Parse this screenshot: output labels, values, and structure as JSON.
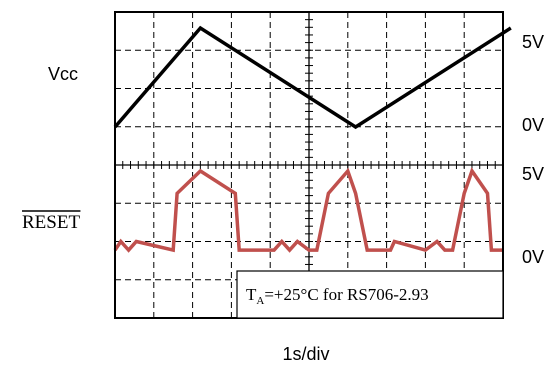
{
  "chart_data": {
    "type": "line",
    "xlabel": "1s/div",
    "series": [
      {
        "name": "Vcc",
        "color": "#000000",
        "x": [
          0,
          2.2,
          6.2,
          10.2
        ],
        "y": [
          0,
          5,
          0,
          5
        ]
      },
      {
        "name": "RESET",
        "color": "#c0504d",
        "x": [
          0,
          0.15,
          0.35,
          0.55,
          1.5,
          1.6,
          2.2,
          3.1,
          3.2,
          4.1,
          4.3,
          4.5,
          4.7,
          5.0,
          5.2,
          5.5,
          6.0,
          6.2,
          6.5,
          7.1,
          7.2,
          8.0,
          8.3,
          8.5,
          8.7,
          9.0,
          9.2,
          9.6,
          9.7,
          10.0
        ],
        "y": [
          0.4,
          0.9,
          0.4,
          0.9,
          0.4,
          3.7,
          5.0,
          3.7,
          0.4,
          0.4,
          0.9,
          0.4,
          0.9,
          0.4,
          0.4,
          3.7,
          5.0,
          3.7,
          0.4,
          0.4,
          0.9,
          0.4,
          0.9,
          0.4,
          0.4,
          3.7,
          5.0,
          3.7,
          0.4,
          0.4
        ]
      }
    ],
    "divisions": {
      "x": 10,
      "y": 8
    },
    "grid": true
  },
  "labels": {
    "vcc": "Vcc",
    "reset": "RESET",
    "vcc_high": "5V",
    "vcc_low": "0V",
    "reset_high": "5V",
    "reset_low": "0V",
    "timebase": "1s/div"
  },
  "annotation": {
    "t": "T",
    "sub": "A",
    "rest": "=+25°C for RS706-2.93"
  }
}
